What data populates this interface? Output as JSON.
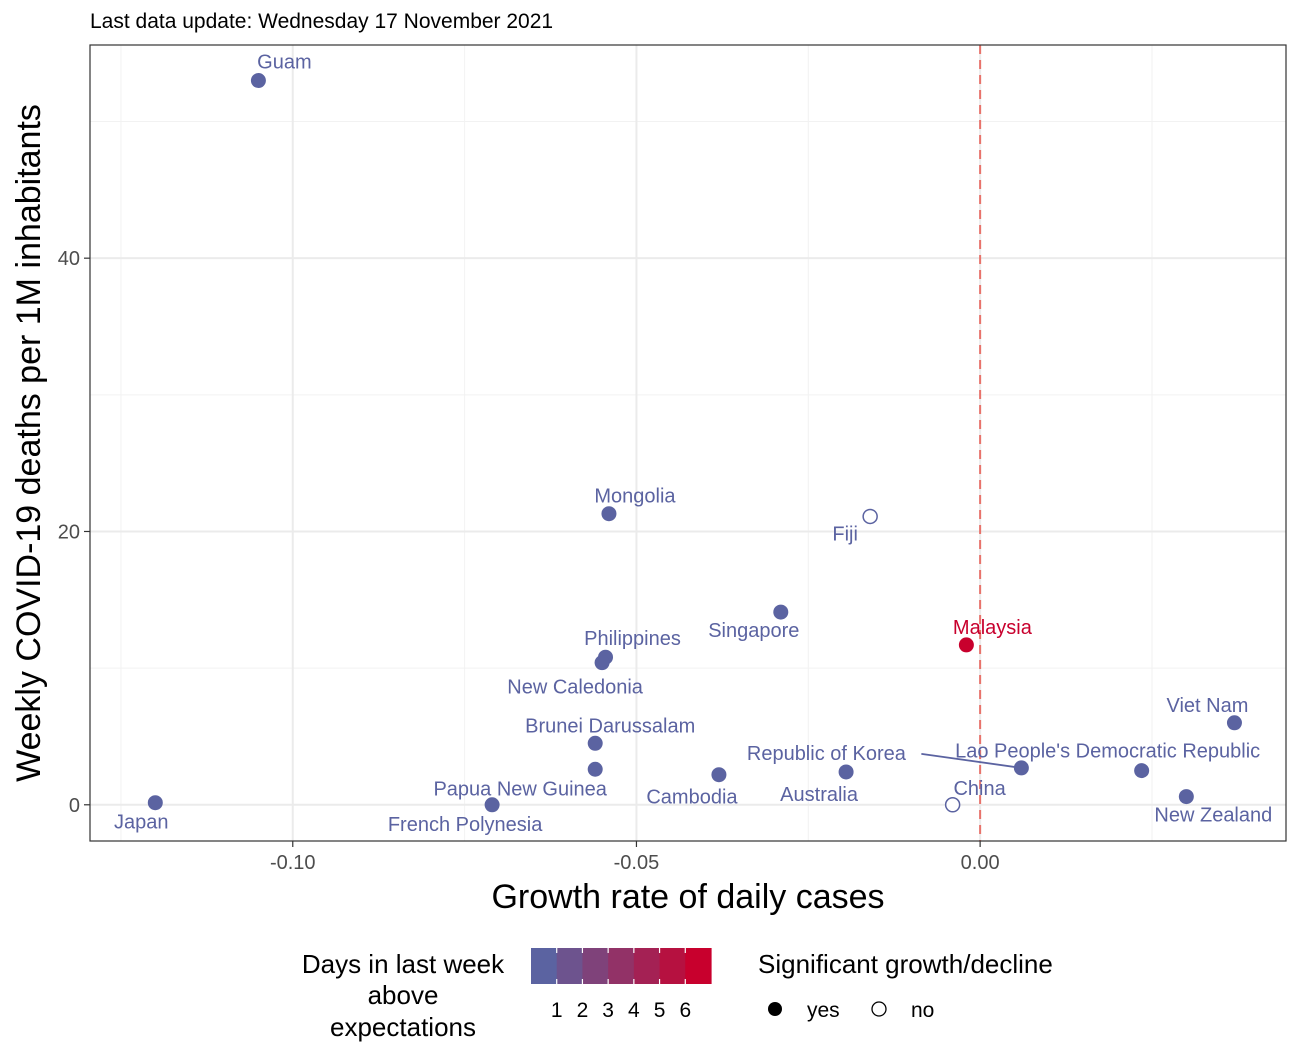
{
  "chart_data": {
    "type": "scatter",
    "subtitle": "Last data update: Wednesday 17 November 2021",
    "xlabel": "Growth rate of daily cases",
    "ylabel": "Weekly COVID-19 deaths per 1M inhabitants",
    "xlim": [
      -0.1295,
      0.0445
    ],
    "ylim": [
      -2.65,
      55.6
    ],
    "x_ticks": [
      -0.1,
      -0.05,
      0.0
    ],
    "x_tick_labels": [
      "-0.10",
      "-0.05",
      "0.00"
    ],
    "y_ticks": [
      0,
      20,
      40
    ],
    "y_tick_labels": [
      "0",
      "20",
      "40"
    ],
    "reference_line": {
      "x": 0,
      "color": "#e8736b",
      "style": "dashed"
    },
    "grid": true,
    "colors": {
      "low": "#5b63a1",
      "high": "#c8002d"
    },
    "points": [
      {
        "label": "Guam",
        "x": -0.105,
        "y": 53.0,
        "days": 0,
        "significant": true
      },
      {
        "label": "Mongolia",
        "x": -0.054,
        "y": 21.3,
        "days": 0,
        "significant": true
      },
      {
        "label": "Fiji",
        "x": -0.016,
        "y": 21.1,
        "days": 0,
        "significant": false
      },
      {
        "label": "Singapore",
        "x": -0.029,
        "y": 14.1,
        "days": 0,
        "significant": true
      },
      {
        "label": "Malaysia",
        "x": -0.002,
        "y": 11.7,
        "days": 7,
        "significant": true
      },
      {
        "label": "Philippines",
        "x": -0.0545,
        "y": 10.8,
        "days": 0,
        "significant": true
      },
      {
        "label": "New Caledonia",
        "x": -0.055,
        "y": 10.4,
        "days": 0,
        "significant": true
      },
      {
        "label": "Viet Nam",
        "x": 0.037,
        "y": 6.0,
        "days": 0,
        "significant": true
      },
      {
        "label": "Brunei Darussalam",
        "x": -0.056,
        "y": 4.5,
        "days": 0,
        "significant": true
      },
      {
        "label": "Papua New Guinea",
        "x": -0.056,
        "y": 2.6,
        "days": 0,
        "significant": true
      },
      {
        "label": "Lao People's Democratic Republic",
        "x": 0.0235,
        "y": 2.5,
        "days": 0,
        "significant": true
      },
      {
        "label": "Republic of Korea",
        "x": 0.006,
        "y": 2.7,
        "days": 0,
        "significant": true
      },
      {
        "label": "Australia",
        "x": -0.0195,
        "y": 2.4,
        "days": 0,
        "significant": true
      },
      {
        "label": "Cambodia",
        "x": -0.038,
        "y": 2.2,
        "days": 0,
        "significant": true
      },
      {
        "label": "New Zealand",
        "x": 0.03,
        "y": 0.6,
        "days": 0,
        "significant": true
      },
      {
        "label": "China",
        "x": -0.004,
        "y": 0.0,
        "days": 0,
        "significant": false
      },
      {
        "label": "French Polynesia",
        "x": -0.071,
        "y": 0.0,
        "days": 0,
        "significant": true
      },
      {
        "label": "Japan",
        "x": -0.12,
        "y": 0.15,
        "days": 0,
        "significant": true
      }
    ],
    "legend": {
      "color_title": [
        "Days in last week",
        "above",
        "expectations"
      ],
      "color_ticks": [
        "1",
        "2",
        "3",
        "4",
        "5",
        "6"
      ],
      "shape_title": "Significant growth/decline",
      "shape_items": [
        {
          "label": "yes",
          "filled": true
        },
        {
          "label": "no",
          "filled": false
        }
      ]
    }
  }
}
